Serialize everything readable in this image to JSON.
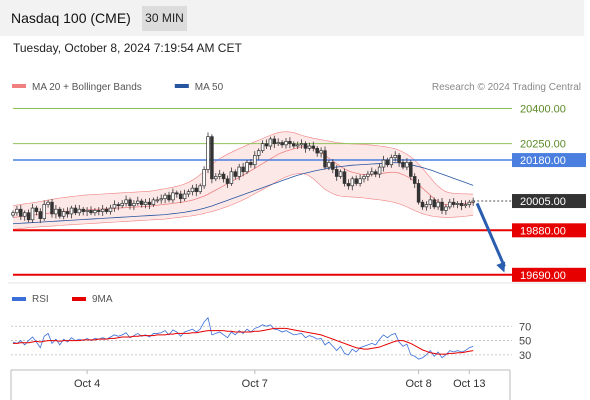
{
  "header": {
    "title": "Nasdaq 100 (CME)",
    "interval": "30 MIN"
  },
  "timestamp": "Tuesday, October 8, 2024 7:19:54 AM CET",
  "credit": "Research © 2024 Trading Central",
  "colors": {
    "bollinger": "#f08080",
    "bollinger_fill": "#fde4e4",
    "ma50": "#2855a0",
    "support": "#e60000",
    "resistance_green": "#8fc35a",
    "pivot_blue": "#4a7fe0",
    "candle_dark": "#333333",
    "rsi": "#3a6fd8",
    "rsi_ma": "#e60000",
    "arrow": "#2a5db0"
  },
  "chart_data": [
    {
      "type": "candlestick",
      "legend": [
        {
          "name": "MA 20 + Bollinger Bands",
          "color": "#f08080"
        },
        {
          "name": "MA 50",
          "color": "#2855a0"
        }
      ],
      "x_ticks": [
        {
          "label": "Oct 4",
          "index": 19
        },
        {
          "label": "Oct 7",
          "index": 62
        },
        {
          "label": "Oct 8",
          "index": 104
        },
        {
          "label": "Oct 13",
          "index": 117
        }
      ],
      "ylim": [
        19655,
        20445
      ],
      "levels": [
        {
          "value": 20400,
          "label": "20400.00",
          "style": "green-thin",
          "start_index": 0
        },
        {
          "value": 20250,
          "label": "20250.00",
          "style": "green-thin",
          "start_index": 0
        },
        {
          "value": 20180,
          "label": "20180.00",
          "style": "blue",
          "start_index": 0
        },
        {
          "value": 20005,
          "label": "20005.00",
          "style": "current",
          "start_index": 118
        },
        {
          "value": 19880,
          "label": "19880.00",
          "style": "red",
          "start_index": 0
        },
        {
          "value": 19690,
          "label": "19690.00",
          "style": "red",
          "start_index": 0
        }
      ],
      "forecast_arrow": {
        "from_index": 119,
        "from_value": 19995,
        "to_index": 126,
        "to_value": 19700
      },
      "closes": [
        19955,
        19970,
        19940,
        19955,
        19925,
        19975,
        19960,
        19930,
        19990,
        20000,
        19950,
        19970,
        19940,
        19960,
        19950,
        19975,
        19955,
        19970,
        19960,
        19965,
        19955,
        19965,
        19960,
        19970,
        19960,
        19975,
        19990,
        19985,
        19995,
        20010,
        19985,
        19995,
        20005,
        19990,
        20000,
        19990,
        20010,
        20010,
        20015,
        20030,
        20010,
        20040,
        20035,
        20015,
        20035,
        20045,
        20060,
        20045,
        20070,
        20140,
        20280,
        20100,
        20110,
        20120,
        20100,
        20080,
        20130,
        20110,
        20150,
        20130,
        20170,
        20160,
        20200,
        20220,
        20250,
        20240,
        20270,
        20250,
        20255,
        20245,
        20260,
        20250,
        20240,
        20245,
        20250,
        20230,
        20240,
        20230,
        20210,
        20220,
        20150,
        20170,
        20140,
        20110,
        20130,
        20080,
        20070,
        20100,
        20080,
        20100,
        20110,
        20120,
        20130,
        20120,
        20150,
        20180,
        20160,
        20190,
        20200,
        20170,
        20150,
        20170,
        20110,
        20080,
        20000,
        19980,
        19990,
        20010,
        19980,
        20000,
        19965,
        19980,
        20000,
        19990,
        19995,
        19985,
        19990,
        20000,
        20005
      ],
      "ma20": [
        19935,
        19937,
        19939,
        19941,
        19943,
        19945,
        19947,
        19949,
        19951,
        19953,
        19955,
        19957,
        19959,
        19961,
        19962,
        19963,
        19964,
        19965,
        19966,
        19967,
        19968,
        19969,
        19970,
        19971,
        19972,
        19973,
        19974,
        19975,
        19976,
        19977,
        19978,
        19979,
        19980,
        19981,
        19982,
        19983,
        19985,
        19987,
        19989,
        19991,
        19993,
        19995,
        19997,
        19999,
        20002,
        20005,
        20009,
        20014,
        20020,
        20026,
        20034,
        20043,
        20052,
        20061,
        20070,
        20079,
        20088,
        20097,
        20106,
        20115,
        20125,
        20135,
        20145,
        20155,
        20165,
        20175,
        20185,
        20195,
        20205,
        20212,
        20218,
        20223,
        20228,
        20232,
        20236,
        20238,
        20236,
        20230,
        20222,
        20212,
        20200,
        20188,
        20176,
        20164,
        20152,
        20142,
        20134,
        20128,
        20124,
        20120,
        20118,
        20118,
        20119,
        20120,
        20122,
        20124,
        20126,
        20128,
        20128,
        20124,
        20118,
        20110,
        20100,
        20088,
        20075,
        20060,
        20045,
        20030,
        20015,
        20003,
        19994,
        19990,
        19990,
        19991,
        19992,
        19993,
        19995,
        19996,
        19997
      ],
      "bb_upper": [
        19985,
        19988,
        19990,
        19993,
        19995,
        19998,
        20000,
        20003,
        20006,
        20009,
        20012,
        20015,
        20018,
        20020,
        20022,
        20024,
        20026,
        20028,
        20030,
        20031,
        20032,
        20033,
        20034,
        20035,
        20036,
        20037,
        20038,
        20039,
        20040,
        20041,
        20042,
        20043,
        20044,
        20045,
        20046,
        20047,
        20049,
        20052,
        20055,
        20058,
        20061,
        20064,
        20068,
        20072,
        20078,
        20085,
        20094,
        20105,
        20118,
        20132,
        20148,
        20162,
        20175,
        20186,
        20196,
        20205,
        20213,
        20221,
        20229,
        20236,
        20244,
        20251,
        20258,
        20265,
        20272,
        20279,
        20286,
        20292,
        20297,
        20300,
        20301,
        20300,
        20297,
        20292,
        20286,
        20281,
        20277,
        20273,
        20270,
        20267,
        20264,
        20261,
        20258,
        20255,
        20253,
        20251,
        20250,
        20249,
        20248,
        20247,
        20246,
        20245,
        20244,
        20242,
        20240,
        20238,
        20235,
        20232,
        20228,
        20222,
        20214,
        20205,
        20194,
        20180,
        20163,
        20145,
        20125,
        20105,
        20085,
        20068,
        20055,
        20045,
        20040,
        20038,
        20037,
        20036,
        20036,
        20035,
        20035
      ],
      "bb_lower": [
        19885,
        19886,
        19888,
        19889,
        19891,
        19892,
        19894,
        19895,
        19896,
        19897,
        19898,
        19899,
        19900,
        19902,
        19903,
        19904,
        19905,
        19906,
        19907,
        19908,
        19909,
        19910,
        19911,
        19912,
        19913,
        19914,
        19915,
        19916,
        19917,
        19918,
        19919,
        19920,
        19921,
        19922,
        19923,
        19924,
        19925,
        19926,
        19927,
        19928,
        19930,
        19932,
        19934,
        19936,
        19938,
        19940,
        19942,
        19945,
        19948,
        19952,
        19956,
        19960,
        19965,
        19970,
        19976,
        19982,
        19988,
        19995,
        20002,
        20010,
        20018,
        20027,
        20036,
        20045,
        20054,
        20063,
        20072,
        20082,
        20092,
        20100,
        20108,
        20114,
        20119,
        20122,
        20123,
        20120,
        20112,
        20100,
        20085,
        20070,
        20055,
        20045,
        20036,
        20030,
        20026,
        20024,
        20023,
        20022,
        20021,
        20020,
        20018,
        20016,
        20014,
        20012,
        20010,
        20008,
        20005,
        20002,
        19998,
        19993,
        19987,
        19980,
        19972,
        19964,
        19957,
        19951,
        19946,
        19942,
        19939,
        19937,
        19936,
        19935,
        19935,
        19936,
        19937,
        19938,
        19940,
        19942,
        19944
      ],
      "ma50": [
        19908,
        19909,
        19910,
        19911,
        19912,
        19913,
        19914,
        19915,
        19916,
        19917,
        19918,
        19919,
        19920,
        19921,
        19922,
        19923,
        19924,
        19925,
        19926,
        19927,
        19928,
        19929,
        19930,
        19931,
        19932,
        19933,
        19934,
        19935,
        19936,
        19937,
        19938,
        19939,
        19940,
        19941,
        19942,
        19943,
        19944,
        19945,
        19946,
        19947,
        19949,
        19951,
        19953,
        19955,
        19957,
        19960,
        19963,
        19966,
        19970,
        19974,
        19979,
        19984,
        19990,
        19996,
        20002,
        20008,
        20014,
        20020,
        20026,
        20032,
        20038,
        20044,
        20050,
        20056,
        20062,
        20068,
        20074,
        20080,
        20086,
        20092,
        20098,
        20104,
        20110,
        20115,
        20120,
        20124,
        20128,
        20132,
        20136,
        20139,
        20142,
        20145,
        20148,
        20150,
        20152,
        20154,
        20156,
        20158,
        20159,
        20160,
        20161,
        20162,
        20163,
        20164,
        20165,
        20166,
        20167,
        20168,
        20169,
        20168,
        20166,
        20163,
        20160,
        20156,
        20152,
        20148,
        20143,
        20138,
        20132,
        20126,
        20120,
        20114,
        20108,
        20102,
        20096,
        20090,
        20084,
        20078,
        20072
      ]
    },
    {
      "type": "line",
      "legend": [
        {
          "name": "RSI",
          "color": "#3a6fd8"
        },
        {
          "name": "9MA",
          "color": "#e60000"
        }
      ],
      "ylim": [
        13,
        90
      ],
      "y_ticks": [
        {
          "value": 70,
          "label": "70"
        },
        {
          "value": 50,
          "label": "50"
        },
        {
          "value": 30,
          "label": "30"
        }
      ],
      "rsi": [
        48,
        46,
        50,
        44,
        50,
        55,
        48,
        40,
        56,
        60,
        46,
        52,
        44,
        52,
        48,
        54,
        50,
        52,
        50,
        53,
        50,
        53,
        52,
        54,
        52,
        55,
        58,
        56,
        58,
        61,
        54,
        57,
        60,
        56,
        58,
        55,
        60,
        60,
        61,
        64,
        58,
        65,
        62,
        56,
        62,
        64,
        66,
        62,
        66,
        76,
        82,
        58,
        60,
        62,
        58,
        54,
        62,
        58,
        64,
        60,
        66,
        62,
        67,
        69,
        72,
        70,
        72,
        66,
        65,
        62,
        64,
        61,
        58,
        59,
        60,
        54,
        57,
        55,
        52,
        53,
        44,
        48,
        42,
        36,
        42,
        32,
        30,
        38,
        34,
        40,
        42,
        44,
        46,
        44,
        52,
        58,
        54,
        58,
        60,
        48,
        42,
        45,
        30,
        28,
        24,
        26,
        30,
        36,
        28,
        34,
        26,
        30,
        36,
        34,
        36,
        34,
        36,
        40,
        42
      ],
      "rsi_ma": [
        46,
        46,
        47,
        47,
        47,
        48,
        49,
        48,
        49,
        50,
        50,
        50,
        49,
        50,
        50,
        50,
        50,
        50,
        51,
        51,
        51,
        51,
        52,
        52,
        52,
        53,
        53,
        54,
        55,
        55,
        55,
        56,
        56,
        57,
        57,
        57,
        57,
        58,
        58,
        58,
        59,
        59,
        60,
        60,
        60,
        60,
        61,
        61,
        62,
        63,
        64,
        64,
        64,
        64,
        64,
        63,
        63,
        62,
        62,
        62,
        62,
        62,
        63,
        63,
        64,
        65,
        66,
        67,
        67,
        67,
        67,
        66,
        65,
        64,
        63,
        62,
        61,
        60,
        59,
        58,
        56,
        54,
        52,
        50,
        48,
        46,
        44,
        42,
        40,
        39,
        38,
        38,
        39,
        40,
        41,
        43,
        45,
        47,
        49,
        50,
        50,
        48,
        46,
        43,
        40,
        37,
        35,
        33,
        32,
        31,
        31,
        31,
        32,
        32,
        33,
        33,
        34,
        35,
        36
      ]
    }
  ]
}
